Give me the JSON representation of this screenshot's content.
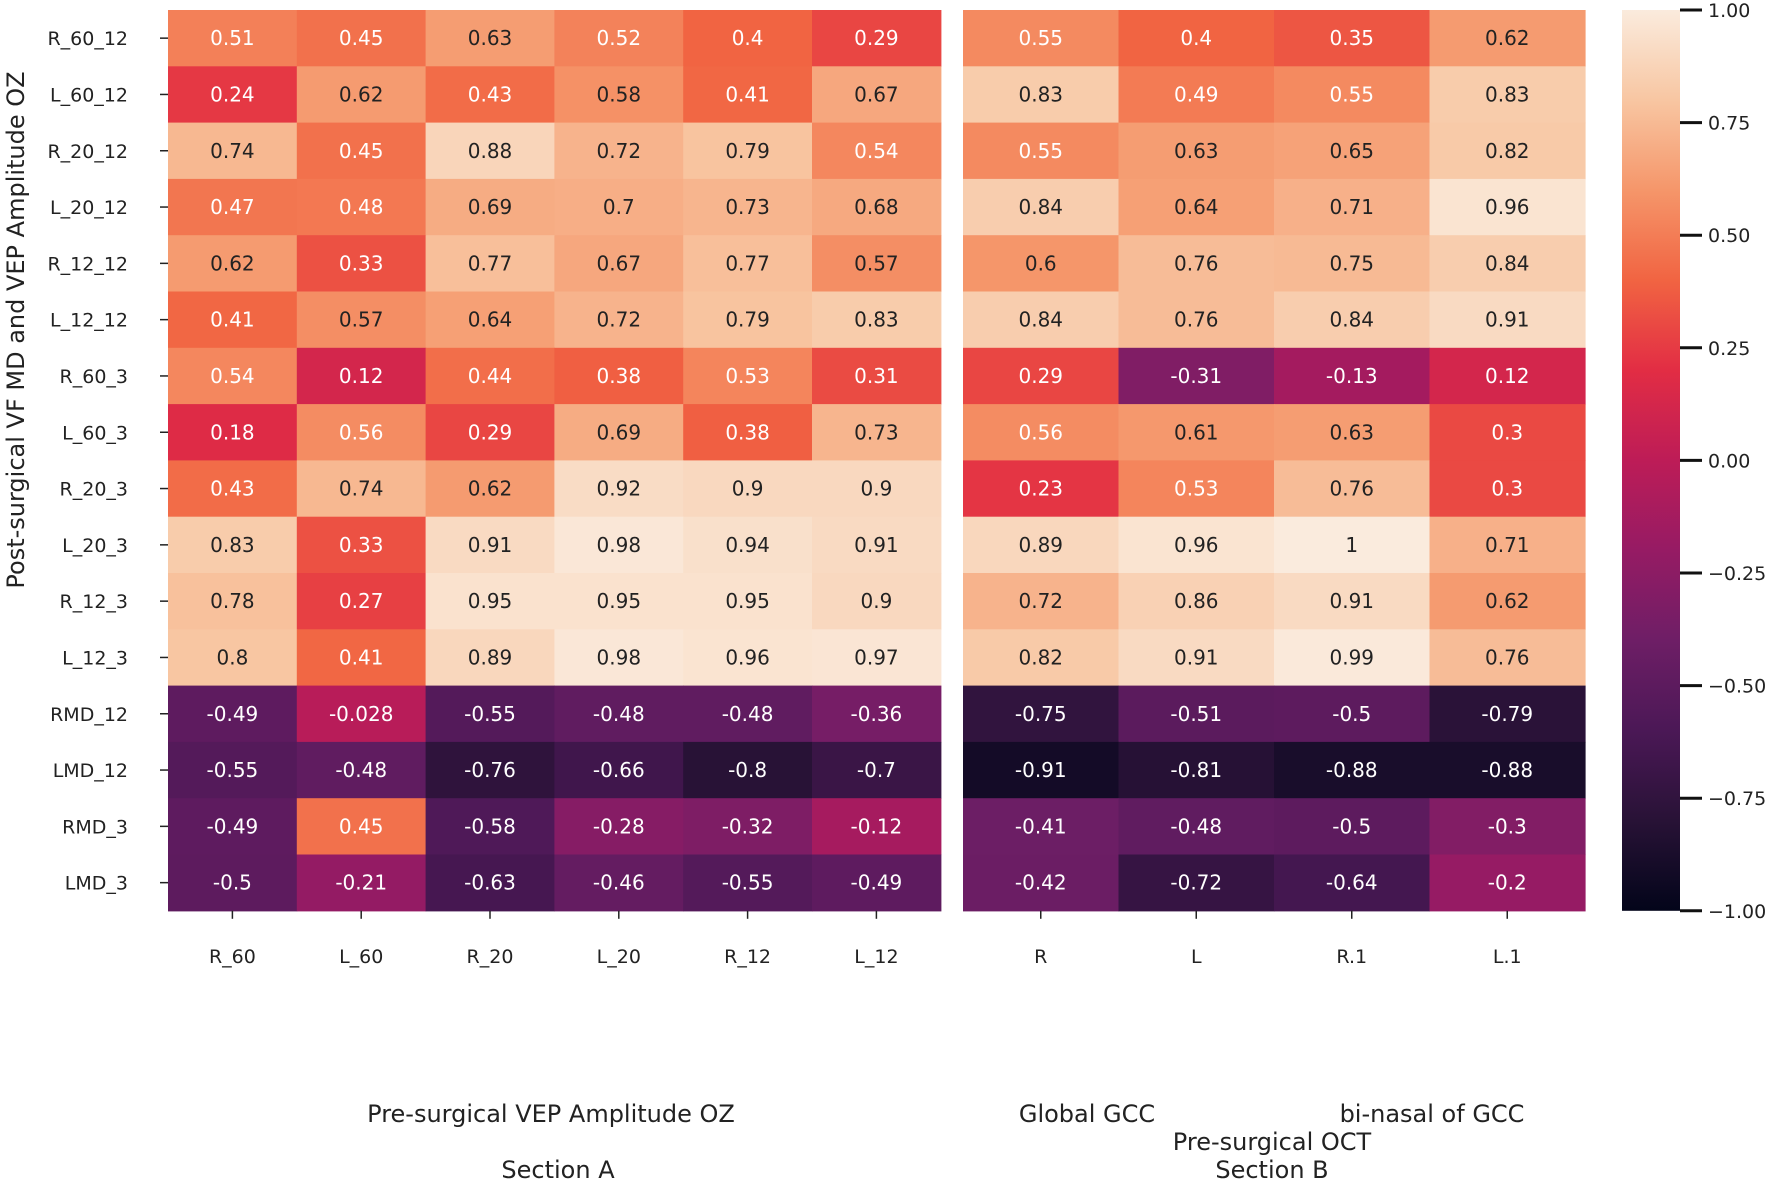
{
  "chart_data": {
    "type": "heatmap",
    "ylabel": "Post-surgical VF MD  and VEP Amplitude OZ",
    "rows": [
      "R_60_12",
      "L_60_12",
      "R_20_12",
      "L_20_12",
      "R_12_12",
      "L_12_12",
      "R_60_3",
      "L_60_3",
      "R_20_3",
      "L_20_3",
      "R_12_3",
      "L_12_3",
      "RMD_12",
      "LMD_12",
      "RMD_3",
      "LMD_3"
    ],
    "colorbar": {
      "range": [
        -1.0,
        1.0
      ],
      "ticks": [
        "1.00",
        "0.75",
        "0.50",
        "0.25",
        "0.00",
        "−0.25",
        "−0.50",
        "−0.75",
        "−1.00"
      ],
      "tick_values": [
        1.0,
        0.75,
        0.5,
        0.25,
        0.0,
        -0.25,
        -0.5,
        -0.75,
        -1.0
      ]
    },
    "panels": [
      {
        "name": "Section A",
        "xlabel": "Pre-surgical VEP Amplitude OZ",
        "section_label": "Section A",
        "columns": [
          "R_60",
          "L_60",
          "R_20",
          "L_20",
          "R_12",
          "L_12"
        ],
        "values": [
          [
            0.51,
            0.45,
            0.63,
            0.52,
            0.4,
            0.29
          ],
          [
            0.24,
            0.62,
            0.43,
            0.58,
            0.41,
            0.67
          ],
          [
            0.74,
            0.45,
            0.88,
            0.72,
            0.79,
            0.54
          ],
          [
            0.47,
            0.48,
            0.69,
            0.7,
            0.73,
            0.68
          ],
          [
            0.62,
            0.33,
            0.77,
            0.67,
            0.77,
            0.57
          ],
          [
            0.41,
            0.57,
            0.64,
            0.72,
            0.79,
            0.83
          ],
          [
            0.54,
            0.12,
            0.44,
            0.38,
            0.53,
            0.31
          ],
          [
            0.18,
            0.56,
            0.29,
            0.69,
            0.38,
            0.73
          ],
          [
            0.43,
            0.74,
            0.62,
            0.92,
            0.9,
            0.9
          ],
          [
            0.83,
            0.33,
            0.91,
            0.98,
            0.94,
            0.91
          ],
          [
            0.78,
            0.27,
            0.95,
            0.95,
            0.95,
            0.9
          ],
          [
            0.8,
            0.41,
            0.89,
            0.98,
            0.96,
            0.97
          ],
          [
            -0.49,
            -0.028,
            -0.55,
            -0.48,
            -0.48,
            -0.36
          ],
          [
            -0.55,
            -0.48,
            -0.76,
            -0.66,
            -0.8,
            -0.7
          ],
          [
            -0.49,
            0.45,
            -0.58,
            -0.28,
            -0.32,
            -0.12
          ],
          [
            -0.5,
            -0.21,
            -0.63,
            -0.46,
            -0.55,
            -0.49
          ]
        ]
      },
      {
        "name": "Section B",
        "group_labels": [
          "Global GCC",
          "bi-nasal of GCC"
        ],
        "xlabel": "Pre-surgical OCT",
        "section_label": "Section B",
        "columns": [
          "R",
          "L",
          "R.1",
          "L.1"
        ],
        "values": [
          [
            0.55,
            0.4,
            0.35,
            0.62
          ],
          [
            0.83,
            0.49,
            0.55,
            0.83
          ],
          [
            0.55,
            0.63,
            0.65,
            0.82
          ],
          [
            0.84,
            0.64,
            0.71,
            0.96
          ],
          [
            0.6,
            0.76,
            0.75,
            0.84
          ],
          [
            0.84,
            0.76,
            0.84,
            0.91
          ],
          [
            0.29,
            -0.31,
            -0.13,
            0.12
          ],
          [
            0.56,
            0.61,
            0.63,
            0.3
          ],
          [
            0.23,
            0.53,
            0.76,
            0.3
          ],
          [
            0.89,
            0.96,
            1,
            0.71
          ],
          [
            0.72,
            0.86,
            0.91,
            0.62
          ],
          [
            0.82,
            0.91,
            0.99,
            0.76
          ],
          [
            -0.75,
            -0.51,
            -0.5,
            -0.79
          ],
          [
            -0.91,
            -0.81,
            -0.88,
            -0.88
          ],
          [
            -0.41,
            -0.48,
            -0.5,
            -0.3
          ],
          [
            -0.42,
            -0.72,
            -0.64,
            -0.2
          ]
        ]
      }
    ]
  }
}
